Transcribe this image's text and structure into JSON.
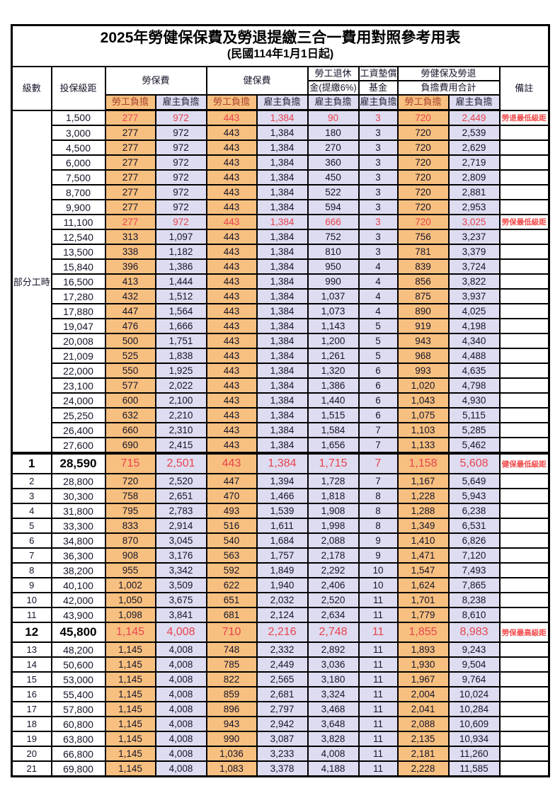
{
  "title": "2025年勞健保保費及勞退提繳三合一費用對照參考用表",
  "subtitle": "(民國114年1月1日起)",
  "header": {
    "col_level": "級數",
    "col_bracket": "投保級距",
    "group_labor": "勞保費",
    "group_health": "健保費",
    "group_pension_l1": "勞工退休",
    "group_pension_l2": "金(提繳6%)",
    "group_wagefund_l1": "工資墊償",
    "group_wagefund_l2": "基金",
    "group_total_l1": "勞健保及勞退",
    "group_total_l2": "負擔費用合計",
    "col_remark": "備註",
    "sub_employee": "勞工負擔",
    "sub_employer": "雇主負擔"
  },
  "part_time_label": "部分工時",
  "colors": {
    "employee_column_bg": "#f8c080",
    "employer_column_bg": "#dedcf0",
    "red_value_text": "#e8434e",
    "remark_red_text": "#f24b4b",
    "grid_border": "#000000"
  },
  "rows": [
    {
      "level": "",
      "bracket": "1,500",
      "values": [
        "277",
        "972",
        "443",
        "1,384",
        "90",
        "3",
        "720",
        "2,449"
      ],
      "remark": "勞退最低級距",
      "style": "red"
    },
    {
      "level": "",
      "bracket": "3,000",
      "values": [
        "277",
        "972",
        "443",
        "1,384",
        "180",
        "3",
        "720",
        "2,539"
      ],
      "remark": "",
      "style": ""
    },
    {
      "level": "",
      "bracket": "4,500",
      "values": [
        "277",
        "972",
        "443",
        "1,384",
        "270",
        "3",
        "720",
        "2,629"
      ],
      "remark": "",
      "style": ""
    },
    {
      "level": "",
      "bracket": "6,000",
      "values": [
        "277",
        "972",
        "443",
        "1,384",
        "360",
        "3",
        "720",
        "2,719"
      ],
      "remark": "",
      "style": ""
    },
    {
      "level": "",
      "bracket": "7,500",
      "values": [
        "277",
        "972",
        "443",
        "1,384",
        "450",
        "3",
        "720",
        "2,809"
      ],
      "remark": "",
      "style": ""
    },
    {
      "level": "",
      "bracket": "8,700",
      "values": [
        "277",
        "972",
        "443",
        "1,384",
        "522",
        "3",
        "720",
        "2,881"
      ],
      "remark": "",
      "style": ""
    },
    {
      "level": "",
      "bracket": "9,900",
      "values": [
        "277",
        "972",
        "443",
        "1,384",
        "594",
        "3",
        "720",
        "2,953"
      ],
      "remark": "",
      "style": ""
    },
    {
      "level": "",
      "bracket": "11,100",
      "values": [
        "277",
        "972",
        "443",
        "1,384",
        "666",
        "3",
        "720",
        "3,025"
      ],
      "remark": "勞保最低級距",
      "style": "red"
    },
    {
      "level": "",
      "bracket": "12,540",
      "values": [
        "313",
        "1,097",
        "443",
        "1,384",
        "752",
        "3",
        "756",
        "3,237"
      ],
      "remark": "",
      "style": ""
    },
    {
      "level": "",
      "bracket": "13,500",
      "values": [
        "338",
        "1,182",
        "443",
        "1,384",
        "810",
        "3",
        "781",
        "3,379"
      ],
      "remark": "",
      "style": ""
    },
    {
      "level": "",
      "bracket": "15,840",
      "values": [
        "396",
        "1,386",
        "443",
        "1,384",
        "950",
        "4",
        "839",
        "3,724"
      ],
      "remark": "",
      "style": ""
    },
    {
      "level": "",
      "bracket": "16,500",
      "values": [
        "413",
        "1,444",
        "443",
        "1,384",
        "990",
        "4",
        "856",
        "3,822"
      ],
      "remark": "",
      "style": ""
    },
    {
      "level": "",
      "bracket": "17,280",
      "values": [
        "432",
        "1,512",
        "443",
        "1,384",
        "1,037",
        "4",
        "875",
        "3,937"
      ],
      "remark": "",
      "style": ""
    },
    {
      "level": "",
      "bracket": "17,880",
      "values": [
        "447",
        "1,564",
        "443",
        "1,384",
        "1,073",
        "4",
        "890",
        "4,025"
      ],
      "remark": "",
      "style": ""
    },
    {
      "level": "",
      "bracket": "19,047",
      "values": [
        "476",
        "1,666",
        "443",
        "1,384",
        "1,143",
        "5",
        "919",
        "4,198"
      ],
      "remark": "",
      "style": ""
    },
    {
      "level": "",
      "bracket": "20,008",
      "values": [
        "500",
        "1,751",
        "443",
        "1,384",
        "1,200",
        "5",
        "943",
        "4,340"
      ],
      "remark": "",
      "style": ""
    },
    {
      "level": "",
      "bracket": "21,009",
      "values": [
        "525",
        "1,838",
        "443",
        "1,384",
        "1,261",
        "5",
        "968",
        "4,488"
      ],
      "remark": "",
      "style": ""
    },
    {
      "level": "",
      "bracket": "22,000",
      "values": [
        "550",
        "1,925",
        "443",
        "1,384",
        "1,320",
        "6",
        "993",
        "4,635"
      ],
      "remark": "",
      "style": ""
    },
    {
      "level": "",
      "bracket": "23,100",
      "values": [
        "577",
        "2,022",
        "443",
        "1,384",
        "1,386",
        "6",
        "1,020",
        "4,798"
      ],
      "remark": "",
      "style": ""
    },
    {
      "level": "",
      "bracket": "24,000",
      "values": [
        "600",
        "2,100",
        "443",
        "1,384",
        "1,440",
        "6",
        "1,043",
        "4,930"
      ],
      "remark": "",
      "style": ""
    },
    {
      "level": "",
      "bracket": "25,250",
      "values": [
        "632",
        "2,210",
        "443",
        "1,384",
        "1,515",
        "6",
        "1,075",
        "5,115"
      ],
      "remark": "",
      "style": ""
    },
    {
      "level": "",
      "bracket": "26,400",
      "values": [
        "660",
        "2,310",
        "443",
        "1,384",
        "1,584",
        "7",
        "1,103",
        "5,285"
      ],
      "remark": "",
      "style": ""
    },
    {
      "level": "",
      "bracket": "27,600",
      "values": [
        "690",
        "2,415",
        "443",
        "1,384",
        "1,656",
        "7",
        "1,133",
        "5,462"
      ],
      "remark": "",
      "style": ""
    },
    {
      "level": "1",
      "bracket": "28,590",
      "values": [
        "715",
        "2,501",
        "443",
        "1,384",
        "1,715",
        "7",
        "1,158",
        "5,608"
      ],
      "remark": "健保最低級距",
      "style": "big"
    },
    {
      "level": "2",
      "bracket": "28,800",
      "values": [
        "720",
        "2,520",
        "447",
        "1,394",
        "1,728",
        "7",
        "1,167",
        "5,649"
      ],
      "remark": "",
      "style": ""
    },
    {
      "level": "3",
      "bracket": "30,300",
      "values": [
        "758",
        "2,651",
        "470",
        "1,466",
        "1,818",
        "8",
        "1,228",
        "5,943"
      ],
      "remark": "",
      "style": ""
    },
    {
      "level": "4",
      "bracket": "31,800",
      "values": [
        "795",
        "2,783",
        "493",
        "1,539",
        "1,908",
        "8",
        "1,288",
        "6,238"
      ],
      "remark": "",
      "style": ""
    },
    {
      "level": "5",
      "bracket": "33,300",
      "values": [
        "833",
        "2,914",
        "516",
        "1,611",
        "1,998",
        "8",
        "1,349",
        "6,531"
      ],
      "remark": "",
      "style": ""
    },
    {
      "level": "6",
      "bracket": "34,800",
      "values": [
        "870",
        "3,045",
        "540",
        "1,684",
        "2,088",
        "9",
        "1,410",
        "6,826"
      ],
      "remark": "",
      "style": ""
    },
    {
      "level": "7",
      "bracket": "36,300",
      "values": [
        "908",
        "3,176",
        "563",
        "1,757",
        "2,178",
        "9",
        "1,471",
        "7,120"
      ],
      "remark": "",
      "style": ""
    },
    {
      "level": "8",
      "bracket": "38,200",
      "values": [
        "955",
        "3,342",
        "592",
        "1,849",
        "2,292",
        "10",
        "1,547",
        "7,493"
      ],
      "remark": "",
      "style": ""
    },
    {
      "level": "9",
      "bracket": "40,100",
      "values": [
        "1,002",
        "3,509",
        "622",
        "1,940",
        "2,406",
        "10",
        "1,624",
        "7,865"
      ],
      "remark": "",
      "style": ""
    },
    {
      "level": "10",
      "bracket": "42,000",
      "values": [
        "1,050",
        "3,675",
        "651",
        "2,032",
        "2,520",
        "11",
        "1,701",
        "8,238"
      ],
      "remark": "",
      "style": ""
    },
    {
      "level": "11",
      "bracket": "43,900",
      "values": [
        "1,098",
        "3,841",
        "681",
        "2,124",
        "2,634",
        "11",
        "1,779",
        "8,610"
      ],
      "remark": "",
      "style": ""
    },
    {
      "level": "12",
      "bracket": "45,800",
      "values": [
        "1,145",
        "4,008",
        "710",
        "2,216",
        "2,748",
        "11",
        "1,855",
        "8,983"
      ],
      "remark": "勞保最高級距",
      "style": "big"
    },
    {
      "level": "13",
      "bracket": "48,200",
      "values": [
        "1,145",
        "4,008",
        "748",
        "2,332",
        "2,892",
        "11",
        "1,893",
        "9,243"
      ],
      "remark": "",
      "style": ""
    },
    {
      "level": "14",
      "bracket": "50,600",
      "values": [
        "1,145",
        "4,008",
        "785",
        "2,449",
        "3,036",
        "11",
        "1,930",
        "9,504"
      ],
      "remark": "",
      "style": ""
    },
    {
      "level": "15",
      "bracket": "53,000",
      "values": [
        "1,145",
        "4,008",
        "822",
        "2,565",
        "3,180",
        "11",
        "1,967",
        "9,764"
      ],
      "remark": "",
      "style": ""
    },
    {
      "level": "16",
      "bracket": "55,400",
      "values": [
        "1,145",
        "4,008",
        "859",
        "2,681",
        "3,324",
        "11",
        "2,004",
        "10,024"
      ],
      "remark": "",
      "style": ""
    },
    {
      "level": "17",
      "bracket": "57,800",
      "values": [
        "1,145",
        "4,008",
        "896",
        "2,797",
        "3,468",
        "11",
        "2,041",
        "10,284"
      ],
      "remark": "",
      "style": ""
    },
    {
      "level": "18",
      "bracket": "60,800",
      "values": [
        "1,145",
        "4,008",
        "943",
        "2,942",
        "3,648",
        "11",
        "2,088",
        "10,609"
      ],
      "remark": "",
      "style": ""
    },
    {
      "level": "19",
      "bracket": "63,800",
      "values": [
        "1,145",
        "4,008",
        "990",
        "3,087",
        "3,828",
        "11",
        "2,135",
        "10,934"
      ],
      "remark": "",
      "style": ""
    },
    {
      "level": "20",
      "bracket": "66,800",
      "values": [
        "1,145",
        "4,008",
        "1,036",
        "3,233",
        "4,008",
        "11",
        "2,181",
        "11,260"
      ],
      "remark": "",
      "style": ""
    },
    {
      "level": "21",
      "bracket": "69,800",
      "values": [
        "1,145",
        "4,008",
        "1,083",
        "3,378",
        "4,188",
        "11",
        "2,228",
        "11,585"
      ],
      "remark": "",
      "style": ""
    }
  ]
}
